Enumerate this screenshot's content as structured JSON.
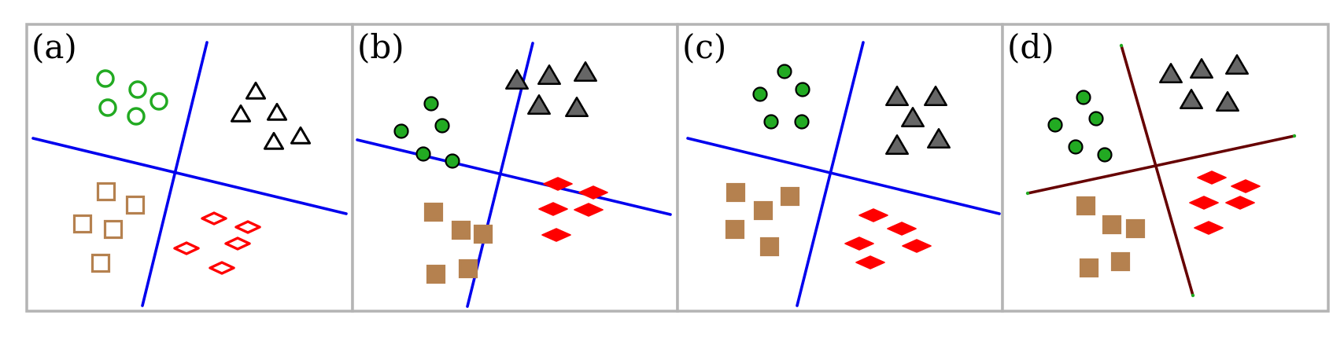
{
  "colors": {
    "circle_green": "#22aa22",
    "triangle_gray": "#666666",
    "square_brown": "#b5814f",
    "diamond_red": "#ff0000",
    "line_blue": "#0000ee",
    "line_darkred": "#660000",
    "border_gray": "#b4b4b4"
  },
  "panels": [
    {
      "label": "(a)",
      "style": "hollow",
      "line_color": "line_blue"
    },
    {
      "label": "(b)",
      "style": "filled",
      "line_color": "line_blue"
    },
    {
      "label": "(c)",
      "style": "filled",
      "line_color": "line_blue"
    },
    {
      "label": "(d)",
      "style": "filled",
      "line_color": "line_darkred"
    }
  ]
}
